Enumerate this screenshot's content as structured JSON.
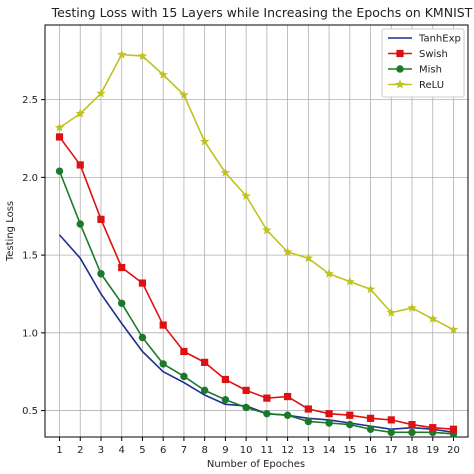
{
  "chart_data": {
    "type": "line",
    "title": "Testing Loss with 15 Layers while Increasing the Epochs on KMNIST",
    "xlabel": "Number of Epoches",
    "ylabel": "Testing Loss",
    "x": [
      1,
      2,
      3,
      4,
      5,
      6,
      7,
      8,
      9,
      10,
      11,
      12,
      13,
      14,
      15,
      16,
      17,
      18,
      19,
      20
    ],
    "xlim": [
      0.3,
      20.7
    ],
    "ylim": [
      0.33,
      2.98
    ],
    "yticks": [
      0.5,
      1.0,
      1.5,
      2.0,
      2.5
    ],
    "ytick_labels": [
      "0.5",
      "1.0",
      "1.5",
      "2.0",
      "2.5"
    ],
    "grid": true,
    "legend_position": "top-right",
    "series": [
      {
        "name": "TanhExp",
        "color": "#1f2f8f",
        "marker": "none",
        "values": [
          1.63,
          1.48,
          1.25,
          1.06,
          0.88,
          0.75,
          0.68,
          0.6,
          0.54,
          0.53,
          0.48,
          0.47,
          0.45,
          0.44,
          0.42,
          0.4,
          0.38,
          0.39,
          0.38,
          0.36
        ]
      },
      {
        "name": "Swish",
        "color": "#dd1111",
        "marker": "square",
        "values": [
          2.26,
          2.08,
          1.73,
          1.42,
          1.32,
          1.05,
          0.88,
          0.81,
          0.7,
          0.63,
          0.58,
          0.59,
          0.51,
          0.48,
          0.47,
          0.45,
          0.44,
          0.41,
          0.39,
          0.38
        ]
      },
      {
        "name": "Mish",
        "color": "#1a7a2a",
        "marker": "circle",
        "values": [
          2.04,
          1.7,
          1.38,
          1.19,
          0.97,
          0.8,
          0.72,
          0.63,
          0.57,
          0.52,
          0.48,
          0.47,
          0.43,
          0.42,
          0.41,
          0.38,
          0.36,
          0.36,
          0.36,
          0.35
        ]
      },
      {
        "name": "ReLU",
        "color": "#bfc21f",
        "marker": "star",
        "values": [
          2.32,
          2.41,
          2.54,
          2.79,
          2.78,
          2.66,
          2.53,
          2.23,
          2.03,
          1.88,
          1.66,
          1.52,
          1.48,
          1.38,
          1.33,
          1.28,
          1.13,
          1.16,
          1.09,
          1.02
        ]
      }
    ]
  }
}
